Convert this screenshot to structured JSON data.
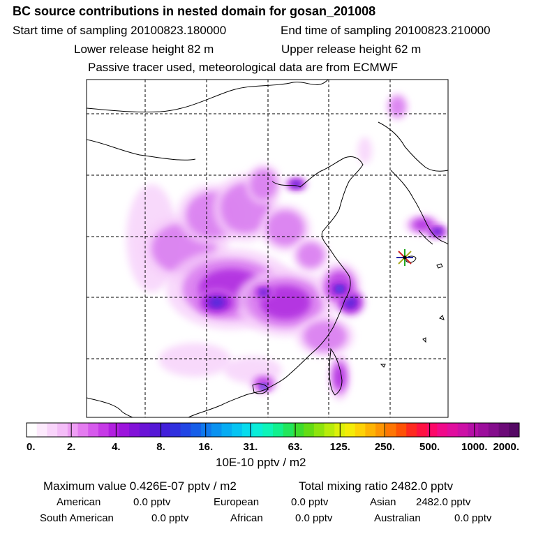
{
  "header": {
    "title": "BC  source contributions in nested domain for gosan_201008",
    "start_label": "Start time of sampling 20100823.180000",
    "end_label": "End time of sampling 20100823.210000",
    "lower_label": "Lower release height   82 m",
    "upper_label": "Upper release height   62 m",
    "tracer_note": "Passive tracer used, meteorological data are from ECMWF"
  },
  "chart_data": {
    "type": "heatmap",
    "title": "BC  source contributions in nested domain for gosan_201008",
    "colorbar": {
      "unit_label": "10E-10 pptv / m2",
      "tick_labels": [
        "0.",
        "2.",
        "4.",
        "8.",
        "16.",
        "31.",
        "63.",
        "125.",
        "250.",
        "500.",
        "1000.",
        "2000."
      ],
      "colors": [
        "#ffffff",
        "#fdeafd",
        "#f9d4fb",
        "#f4bdf8",
        "#ee9ef4",
        "#e47cf0",
        "#d65aec",
        "#c63ae6",
        "#b21fe0",
        "#9c14dc",
        "#8212d8",
        "#6a14d6",
        "#5518d6",
        "#421fda",
        "#3030de",
        "#2145e4",
        "#165ee8",
        "#0f78ec",
        "#0a92f0",
        "#07acf2",
        "#06c4f2",
        "#08dced",
        "#0aeed8",
        "#0ef4b8",
        "#12f08e",
        "#22e65c",
        "#3edc2c",
        "#64dc14",
        "#8ee40e",
        "#b8ec0c",
        "#dcf00a",
        "#f4ec08",
        "#fed206",
        "#feb404",
        "#fe9604",
        "#fe7604",
        "#fe5206",
        "#fe2a20",
        "#fe1242",
        "#fc0868",
        "#f00a8a",
        "#e00e9e",
        "#cc10a6",
        "#b40fa6",
        "#9c0e9c",
        "#840c8c",
        "#6c0a78",
        "#540864"
      ]
    },
    "receptor_marker": "gosan-receptor-star",
    "summary": {
      "max_value_text": "Maximum value  0.426E-07 pptv / m2",
      "total_mixing_text": "Total mixing ratio     2482.0 pptv",
      "regions": [
        {
          "name": "American",
          "value": "0.0 pptv"
        },
        {
          "name": "European",
          "value": "0.0 pptv"
        },
        {
          "name": "Asian",
          "value": "2482.0 pptv"
        },
        {
          "name": "South American",
          "value": "0.0 pptv"
        },
        {
          "name": "African",
          "value": "0.0 pptv"
        },
        {
          "name": "Australian",
          "value": "0.0 pptv"
        }
      ]
    },
    "blobs": [
      {
        "x": 0.18,
        "y": 0.47,
        "sx": 0.07,
        "sy": 0.16,
        "level": 1
      },
      {
        "x": 0.27,
        "y": 0.5,
        "sx": 0.12,
        "sy": 0.1,
        "level": 2
      },
      {
        "x": 0.35,
        "y": 0.4,
        "sx": 0.1,
        "sy": 0.09,
        "level": 2
      },
      {
        "x": 0.44,
        "y": 0.38,
        "sx": 0.09,
        "sy": 0.1,
        "level": 2
      },
      {
        "x": 0.55,
        "y": 0.44,
        "sx": 0.07,
        "sy": 0.07,
        "level": 2
      },
      {
        "x": 0.4,
        "y": 0.62,
        "sx": 0.18,
        "sy": 0.12,
        "level": 3
      },
      {
        "x": 0.55,
        "y": 0.66,
        "sx": 0.14,
        "sy": 0.1,
        "level": 3
      },
      {
        "x": 0.3,
        "y": 0.83,
        "sx": 0.1,
        "sy": 0.05,
        "level": 1
      },
      {
        "x": 0.46,
        "y": 0.86,
        "sx": 0.08,
        "sy": 0.04,
        "level": 1
      },
      {
        "x": 0.62,
        "y": 0.52,
        "sx": 0.05,
        "sy": 0.05,
        "level": 2
      },
      {
        "x": 0.7,
        "y": 0.61,
        "sx": 0.06,
        "sy": 0.07,
        "level": 3
      },
      {
        "x": 0.73,
        "y": 0.66,
        "sx": 0.04,
        "sy": 0.04,
        "level": 4
      },
      {
        "x": 0.66,
        "y": 0.76,
        "sx": 0.08,
        "sy": 0.06,
        "level": 2
      },
      {
        "x": 0.7,
        "y": 0.88,
        "sx": 0.03,
        "sy": 0.07,
        "level": 3
      },
      {
        "x": 0.49,
        "y": 0.31,
        "sx": 0.05,
        "sy": 0.06,
        "level": 2
      },
      {
        "x": 0.58,
        "y": 0.31,
        "sx": 0.03,
        "sy": 0.02,
        "level": 4
      },
      {
        "x": 0.86,
        "y": 0.08,
        "sx": 0.03,
        "sy": 0.04,
        "level": 2
      },
      {
        "x": 0.77,
        "y": 0.21,
        "sx": 0.02,
        "sy": 0.04,
        "level": 1
      },
      {
        "x": 0.93,
        "y": 0.43,
        "sx": 0.05,
        "sy": 0.03,
        "level": 3
      },
      {
        "x": 0.97,
        "y": 0.45,
        "sx": 0.03,
        "sy": 0.02,
        "level": 4
      },
      {
        "x": 0.49,
        "y": 0.9,
        "sx": 0.04,
        "sy": 0.03,
        "level": 3
      },
      {
        "x": 0.49,
        "y": 0.91,
        "sx": 0.015,
        "sy": 0.01,
        "level": 5
      },
      {
        "x": 0.49,
        "y": 0.63,
        "sx": 0.03,
        "sy": 0.02,
        "level": 4
      },
      {
        "x": 0.7,
        "y": 0.62,
        "sx": 0.04,
        "sy": 0.03,
        "level": 5
      },
      {
        "x": 0.36,
        "y": 0.66,
        "sx": 0.06,
        "sy": 0.04,
        "level": 4
      }
    ]
  }
}
